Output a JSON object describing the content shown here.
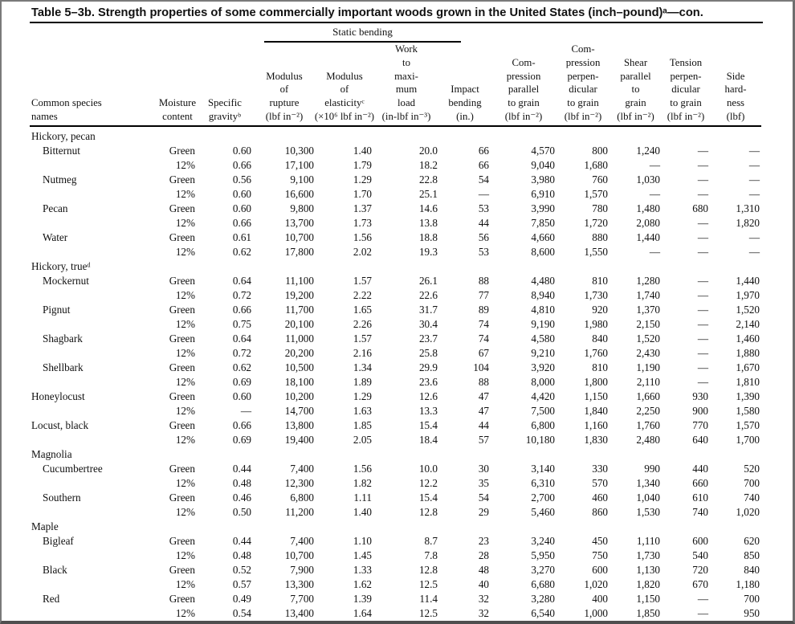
{
  "page": {
    "title": "Table 5–3b. Strength properties of some commercially important woods grown in the United States (inch–pound)ᵃ—con."
  },
  "table": {
    "static_bending_label": "Static bending",
    "columns": [
      {
        "id": "species",
        "lines": [
          "Common species",
          "names"
        ]
      },
      {
        "id": "moisture",
        "lines": [
          "Moisture",
          "content"
        ]
      },
      {
        "id": "gravity",
        "lines": [
          "Specific",
          "gravityᵇ"
        ]
      },
      {
        "id": "modulus-rupture",
        "lines": [
          "Modulus",
          "of",
          "rupture",
          "(lbf in⁻²)"
        ]
      },
      {
        "id": "modulus-elasticity",
        "lines": [
          "Modulus",
          "of",
          "elasticityᶜ",
          "(×10⁶ lbf in⁻²)"
        ]
      },
      {
        "id": "work-max-load",
        "lines": [
          "Work",
          "to",
          "maxi-",
          "mum",
          "load",
          "(in-lbf in⁻³)"
        ]
      },
      {
        "id": "impact-bending",
        "lines": [
          "Impact",
          "bending",
          "(in.)"
        ]
      },
      {
        "id": "compression-parallel",
        "lines": [
          "Com-",
          "pression",
          "parallel",
          "to grain",
          "(lbf in⁻²)"
        ]
      },
      {
        "id": "compression-perpendicular",
        "lines": [
          "Com-",
          "pression",
          "perpen-",
          "dicular",
          "to grain",
          "(lbf in⁻²)"
        ]
      },
      {
        "id": "shear-parallel",
        "lines": [
          "Shear",
          "parallel",
          "to",
          "grain",
          "(lbf in⁻²)"
        ]
      },
      {
        "id": "tension-perpendicular",
        "lines": [
          "Tension",
          "perpen-",
          "dicular",
          "to grain",
          "(lbf in⁻²)"
        ]
      },
      {
        "id": "side-hardness",
        "lines": [
          "Side",
          "hard-",
          "ness",
          "(lbf)"
        ]
      }
    ],
    "rows": [
      {
        "type": "group",
        "name": "Hickory, pecan"
      },
      {
        "type": "data",
        "species": "Bitternut",
        "indent": true,
        "cells": [
          "Green",
          "0.60",
          "10,300",
          "1.40",
          "20.0",
          "66",
          "4,570",
          "800",
          "1,240",
          "—",
          "—"
        ]
      },
      {
        "type": "data",
        "species": "",
        "indent": true,
        "cells": [
          "12%",
          "0.66",
          "17,100",
          "1.79",
          "18.2",
          "66",
          "9,040",
          "1,680",
          "—",
          "—",
          "—"
        ]
      },
      {
        "type": "data",
        "species": "Nutmeg",
        "indent": true,
        "cells": [
          "Green",
          "0.56",
          "9,100",
          "1.29",
          "22.8",
          "54",
          "3,980",
          "760",
          "1,030",
          "—",
          "—"
        ]
      },
      {
        "type": "data",
        "species": "",
        "indent": true,
        "cells": [
          "12%",
          "0.60",
          "16,600",
          "1.70",
          "25.1",
          "—",
          "6,910",
          "1,570",
          "—",
          "—",
          "—"
        ]
      },
      {
        "type": "data",
        "species": "Pecan",
        "indent": true,
        "cells": [
          "Green",
          "0.60",
          "9,800",
          "1.37",
          "14.6",
          "53",
          "3,990",
          "780",
          "1,480",
          "680",
          "1,310"
        ]
      },
      {
        "type": "data",
        "species": "",
        "indent": true,
        "cells": [
          "12%",
          "0.66",
          "13,700",
          "1.73",
          "13.8",
          "44",
          "7,850",
          "1,720",
          "2,080",
          "—",
          "1,820"
        ]
      },
      {
        "type": "data",
        "species": "Water",
        "indent": true,
        "cells": [
          "Green",
          "0.61",
          "10,700",
          "1.56",
          "18.8",
          "56",
          "4,660",
          "880",
          "1,440",
          "—",
          "—"
        ]
      },
      {
        "type": "data",
        "species": "",
        "indent": true,
        "cells": [
          "12%",
          "0.62",
          "17,800",
          "2.02",
          "19.3",
          "53",
          "8,600",
          "1,550",
          "—",
          "—",
          "—"
        ]
      },
      {
        "type": "group",
        "name": "Hickory, trueᵈ"
      },
      {
        "type": "data",
        "species": "Mockernut",
        "indent": true,
        "cells": [
          "Green",
          "0.64",
          "11,100",
          "1.57",
          "26.1",
          "88",
          "4,480",
          "810",
          "1,280",
          "—",
          "1,440"
        ]
      },
      {
        "type": "data",
        "species": "",
        "indent": true,
        "cells": [
          "12%",
          "0.72",
          "19,200",
          "2.22",
          "22.6",
          "77",
          "8,940",
          "1,730",
          "1,740",
          "—",
          "1,970"
        ]
      },
      {
        "type": "data",
        "species": "Pignut",
        "indent": true,
        "cells": [
          "Green",
          "0.66",
          "11,700",
          "1.65",
          "31.7",
          "89",
          "4,810",
          "920",
          "1,370",
          "—",
          "1,520"
        ]
      },
      {
        "type": "data",
        "species": "",
        "indent": true,
        "cells": [
          "12%",
          "0.75",
          "20,100",
          "2.26",
          "30.4",
          "74",
          "9,190",
          "1,980",
          "2,150",
          "—",
          "2,140"
        ]
      },
      {
        "type": "data",
        "species": "Shagbark",
        "indent": true,
        "cells": [
          "Green",
          "0.64",
          "11,000",
          "1.57",
          "23.7",
          "74",
          "4,580",
          "840",
          "1,520",
          "—",
          "1,460"
        ]
      },
      {
        "type": "data",
        "species": "",
        "indent": true,
        "cells": [
          "12%",
          "0.72",
          "20,200",
          "2.16",
          "25.8",
          "67",
          "9,210",
          "1,760",
          "2,430",
          "—",
          "1,880"
        ]
      },
      {
        "type": "data",
        "species": "Shellbark",
        "indent": true,
        "cells": [
          "Green",
          "0.62",
          "10,500",
          "1.34",
          "29.9",
          "104",
          "3,920",
          "810",
          "1,190",
          "—",
          "1,670"
        ]
      },
      {
        "type": "data",
        "species": "",
        "indent": true,
        "cells": [
          "12%",
          "0.69",
          "18,100",
          "1.89",
          "23.6",
          "88",
          "8,000",
          "1,800",
          "2,110",
          "—",
          "1,810"
        ]
      },
      {
        "type": "data",
        "species": "Honeylocust",
        "indent": false,
        "cells": [
          "Green",
          "0.60",
          "10,200",
          "1.29",
          "12.6",
          "47",
          "4,420",
          "1,150",
          "1,660",
          "930",
          "1,390"
        ]
      },
      {
        "type": "data",
        "species": "",
        "indent": false,
        "cells": [
          "12%",
          "—",
          "14,700",
          "1.63",
          "13.3",
          "47",
          "7,500",
          "1,840",
          "2,250",
          "900",
          "1,580"
        ]
      },
      {
        "type": "data",
        "species": "Locust, black",
        "indent": false,
        "cells": [
          "Green",
          "0.66",
          "13,800",
          "1.85",
          "15.4",
          "44",
          "6,800",
          "1,160",
          "1,760",
          "770",
          "1,570"
        ]
      },
      {
        "type": "data",
        "species": "",
        "indent": false,
        "cells": [
          "12%",
          "0.69",
          "19,400",
          "2.05",
          "18.4",
          "57",
          "10,180",
          "1,830",
          "2,480",
          "640",
          "1,700"
        ]
      },
      {
        "type": "group",
        "name": "Magnolia"
      },
      {
        "type": "data",
        "species": "Cucumbertree",
        "indent": true,
        "cells": [
          "Green",
          "0.44",
          "7,400",
          "1.56",
          "10.0",
          "30",
          "3,140",
          "330",
          "990",
          "440",
          "520"
        ]
      },
      {
        "type": "data",
        "species": "",
        "indent": true,
        "cells": [
          "12%",
          "0.48",
          "12,300",
          "1.82",
          "12.2",
          "35",
          "6,310",
          "570",
          "1,340",
          "660",
          "700"
        ]
      },
      {
        "type": "data",
        "species": "Southern",
        "indent": true,
        "cells": [
          "Green",
          "0.46",
          "6,800",
          "1.11",
          "15.4",
          "54",
          "2,700",
          "460",
          "1,040",
          "610",
          "740"
        ]
      },
      {
        "type": "data",
        "species": "",
        "indent": true,
        "cells": [
          "12%",
          "0.50",
          "11,200",
          "1.40",
          "12.8",
          "29",
          "5,460",
          "860",
          "1,530",
          "740",
          "1,020"
        ]
      },
      {
        "type": "group",
        "name": "Maple"
      },
      {
        "type": "data",
        "species": "Bigleaf",
        "indent": true,
        "cells": [
          "Green",
          "0.44",
          "7,400",
          "1.10",
          "8.7",
          "23",
          "3,240",
          "450",
          "1,110",
          "600",
          "620"
        ]
      },
      {
        "type": "data",
        "species": "",
        "indent": true,
        "cells": [
          "12%",
          "0.48",
          "10,700",
          "1.45",
          "7.8",
          "28",
          "5,950",
          "750",
          "1,730",
          "540",
          "850"
        ]
      },
      {
        "type": "data",
        "species": "Black",
        "indent": true,
        "cells": [
          "Green",
          "0.52",
          "7,900",
          "1.33",
          "12.8",
          "48",
          "3,270",
          "600",
          "1,130",
          "720",
          "840"
        ]
      },
      {
        "type": "data",
        "species": "",
        "indent": true,
        "cells": [
          "12%",
          "0.57",
          "13,300",
          "1.62",
          "12.5",
          "40",
          "6,680",
          "1,020",
          "1,820",
          "670",
          "1,180"
        ]
      },
      {
        "type": "data",
        "species": "Red",
        "indent": true,
        "cells": [
          "Green",
          "0.49",
          "7,700",
          "1.39",
          "11.4",
          "32",
          "3,280",
          "400",
          "1,150",
          "—",
          "700"
        ]
      },
      {
        "type": "data",
        "species": "",
        "indent": true,
        "cells": [
          "12%",
          "0.54",
          "13,400",
          "1.64",
          "12.5",
          "32",
          "6,540",
          "1,000",
          "1,850",
          "—",
          "950"
        ]
      }
    ]
  }
}
